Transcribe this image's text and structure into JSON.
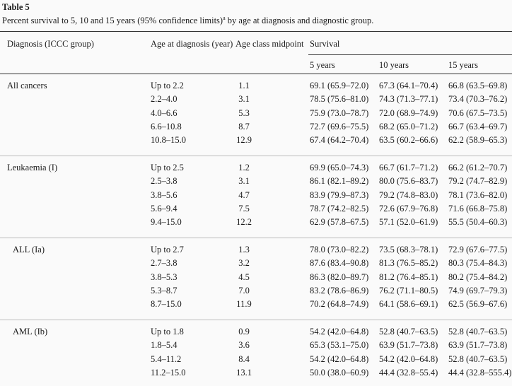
{
  "table": {
    "title": "Table 5",
    "caption_pre": "Percent survival to 5, 10 and 15 years (95% confidence limits)",
    "caption_sup": "a",
    "caption_post": " by age at diagnosis and diagnostic group.",
    "headers": {
      "diagnosis": "Diagnosis (ICCC group)",
      "age": "Age at diagnosis (year)",
      "midpoint": "Age class midpoint",
      "survival": "Survival",
      "y5": "5 years",
      "y10": "10 years",
      "y15": "15 years"
    },
    "groups": [
      {
        "name": "All cancers",
        "rows": [
          {
            "age": "Up to 2.2",
            "mid": "1.1",
            "s5": "69.1 (65.9–72.0)",
            "s10": "67.3 (64.1–70.4)",
            "s15": "66.8 (63.5–69.8)"
          },
          {
            "age": "2.2–4.0",
            "mid": "3.1",
            "s5": "78.5 (75.6–81.0)",
            "s10": "74.3 (71.3–77.1)",
            "s15": "73.4 (70.3–76.2)"
          },
          {
            "age": "4.0–6.6",
            "mid": "5.3",
            "s5": "75.9 (73.0–78.7)",
            "s10": "72.0 (68.9–74.9)",
            "s15": "70.6 (67.5–73.5)"
          },
          {
            "age": "6.6–10.8",
            "mid": "8.7",
            "s5": "72.7 (69.6–75.5)",
            "s10": "68.2 (65.0–71.2)",
            "s15": "66.7 (63.4–69.7)"
          },
          {
            "age": "10.8–15.0",
            "mid": "12.9",
            "s5": "67.4 (64.2–70.4)",
            "s10": "63.5 (60.2–66.6)",
            "s15": "62.2 (58.9–65.3)"
          }
        ]
      },
      {
        "name": "Leukaemia (I)",
        "rows": [
          {
            "age": "Up to 2.5",
            "mid": "1.2",
            "s5": "69.9 (65.0–74.3)",
            "s10": "66.7 (61.7–71.2)",
            "s15": "66.2 (61.2–70.7)"
          },
          {
            "age": "2.5–3.8",
            "mid": "3.1",
            "s5": "86.1 (82.1–89.2)",
            "s10": "80.0 (75.6–83.7)",
            "s15": "79.2 (74.7–82.9)"
          },
          {
            "age": "3.8–5.6",
            "mid": "4.7",
            "s5": "83.9 (79.9–87.3)",
            "s10": "79.2 (74.8–83.0)",
            "s15": "78.1 (73.6–82.0)"
          },
          {
            "age": "5.6–9.4",
            "mid": "7.5",
            "s5": "78.7 (74.2–82.5)",
            "s10": "72.6 (67.9–76.8)",
            "s15": "71.6 (66.8–75.8)"
          },
          {
            "age": "9.4–15.0",
            "mid": "12.2",
            "s5": "62.9 (57.8–67.5)",
            "s10": "57.1 (52.0–61.9)",
            "s15": "55.5 (50.4–60.3)"
          }
        ]
      },
      {
        "name": "ALL (Ia)",
        "rows": [
          {
            "age": "Up to 2.7",
            "mid": "1.3",
            "s5": "78.0 (73.0–82.2)",
            "s10": "73.5 (68.3–78.1)",
            "s15": "72.9 (67.6–77.5)"
          },
          {
            "age": "2.7–3.8",
            "mid": "3.2",
            "s5": "87.6 (83.4–90.8)",
            "s10": "81.3 (76.5–85.2)",
            "s15": "80.3 (75.4–84.3)"
          },
          {
            "age": "3.8–5.3",
            "mid": "4.5",
            "s5": "86.3 (82.0–89.7)",
            "s10": "81.2 (76.4–85.1)",
            "s15": "80.2 (75.4–84.2)"
          },
          {
            "age": "5.3–8.7",
            "mid": "7.0",
            "s5": "83.2 (78.6–86.9)",
            "s10": "76.2 (71.1–80.5)",
            "s15": "74.9 (69.7–79.3)"
          },
          {
            "age": "8.7–15.0",
            "mid": "11.9",
            "s5": "70.2 (64.8–74.9)",
            "s10": "64.1 (58.6–69.1)",
            "s15": "62.5 (56.9–67.6)"
          }
        ]
      },
      {
        "name": "AML (Ib)",
        "rows": [
          {
            "age": "Up to 1.8",
            "mid": "0.9",
            "s5": "54.2 (42.0–64.8)",
            "s10": "52.8 (40.7–63.5)",
            "s15": "52.8 (40.7–63.5)"
          },
          {
            "age": "1.8–5.4",
            "mid": "3.6",
            "s5": "65.3 (53.1–75.0)",
            "s10": "63.9 (51.7–73.8)",
            "s15": "63.9 (51.7–73.8)"
          },
          {
            "age": "5.4–11.2",
            "mid": "8.4",
            "s5": "54.2 (42.0–64.8)",
            "s10": "54.2 (42.0–64.8)",
            "s15": "52.8 (40.7–63.5)"
          },
          {
            "age": "11.2–15.0",
            "mid": "13.1",
            "s5": "50.0 (38.0–60.9)",
            "s10": "44.4 (32.8–55.4)",
            "s15": "44.4 (32.8–555.4)"
          }
        ]
      }
    ]
  }
}
